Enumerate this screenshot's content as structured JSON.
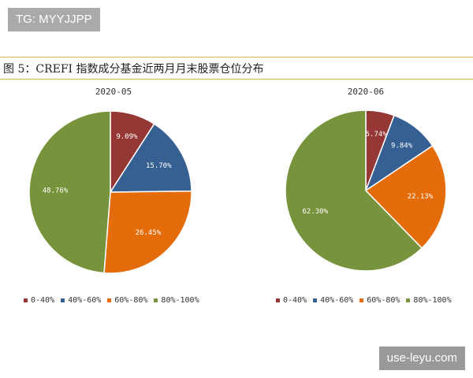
{
  "watermark_top": "TG: MYYJJPP",
  "watermark_bottom": "use-leyu.com",
  "figure_title": "图 5：CREFI 指数成分基金近两月月末股票仓位分布",
  "categories": [
    "0-40%",
    "40%-60%",
    "60%-80%",
    "80%-100%"
  ],
  "colors": [
    "#953735",
    "#376092",
    "#e46c0a",
    "#77933c"
  ],
  "chart_data": [
    {
      "type": "pie",
      "title": "2020-05",
      "categories": [
        "0-40%",
        "40%-60%",
        "60%-80%",
        "80%-100%"
      ],
      "values": [
        9.09,
        15.7,
        26.45,
        48.76
      ],
      "labels": [
        "9.09%",
        "15.70%",
        "26.45%",
        "48.76%"
      ],
      "legend": "bottom"
    },
    {
      "type": "pie",
      "title": "2020-06",
      "categories": [
        "0-40%",
        "40%-60%",
        "60%-80%",
        "80%-100%"
      ],
      "values": [
        5.74,
        9.84,
        22.13,
        62.3
      ],
      "labels": [
        "5.74%",
        "9.84%",
        "22.13%",
        "62.30%"
      ],
      "legend": "bottom"
    }
  ]
}
